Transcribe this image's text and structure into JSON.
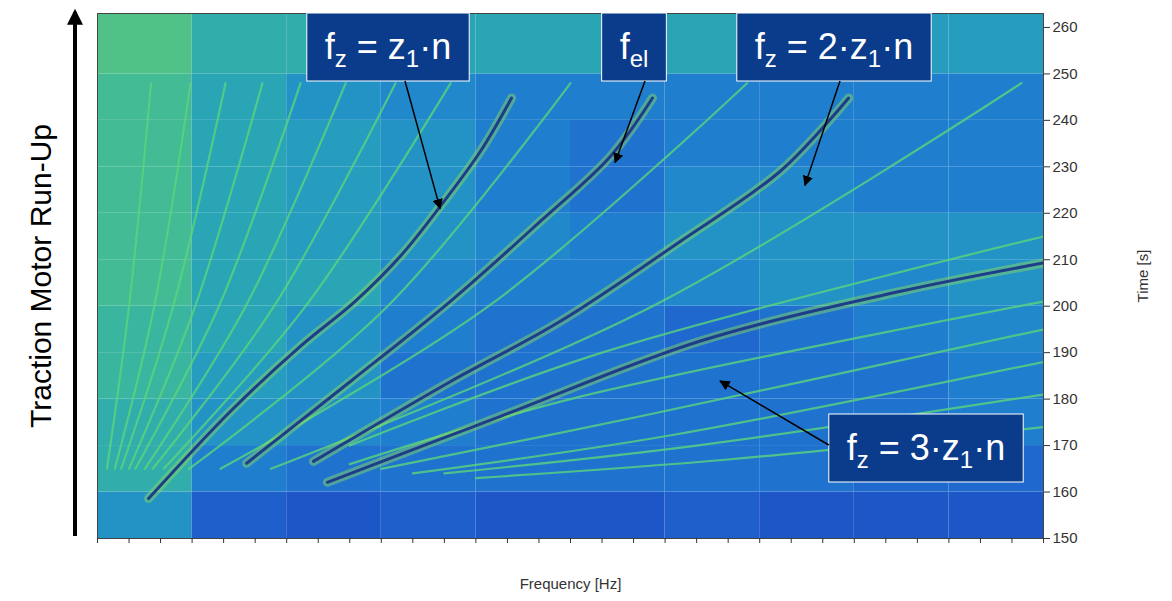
{
  "chart_data": {
    "type": "spectrogram",
    "run_up_label": "Traction Motor Run-Up",
    "xlabel": "Frequency [Hz]",
    "ylabel": "Time [s]",
    "xlim": [
      0,
      30
    ],
    "xticks": [
      0,
      1,
      2,
      3,
      4,
      5,
      6,
      7,
      8,
      9,
      10,
      11,
      12,
      13,
      14,
      15,
      16,
      17,
      18,
      19,
      20,
      21,
      22,
      23,
      24,
      25,
      26,
      27,
      28,
      29,
      30
    ],
    "ylim": [
      150,
      263
    ],
    "yticks": [
      150,
      160,
      170,
      180,
      190,
      200,
      210,
      220,
      230,
      240,
      250,
      260
    ],
    "tick_labels": "y",
    "cells": {
      "x_edges": [
        0,
        3,
        6,
        9,
        12,
        15,
        18,
        21,
        24,
        27,
        30
      ],
      "y_edges": [
        150,
        160,
        170,
        180,
        190,
        200,
        210,
        220,
        230,
        240,
        250,
        263
      ],
      "zlim": [
        0,
        1
      ],
      "values": [
        [
          0.45,
          0.2,
          0.15,
          0.2,
          0.15,
          0.15,
          0.2,
          0.15,
          0.15,
          0.15
        ],
        [
          0.6,
          0.35,
          0.3,
          0.3,
          0.3,
          0.3,
          0.3,
          0.3,
          0.25,
          0.25
        ],
        [
          0.6,
          0.45,
          0.4,
          0.35,
          0.3,
          0.3,
          0.3,
          0.3,
          0.3,
          0.35
        ],
        [
          0.65,
          0.5,
          0.45,
          0.3,
          0.3,
          0.3,
          0.3,
          0.3,
          0.3,
          0.35
        ],
        [
          0.65,
          0.55,
          0.45,
          0.35,
          0.3,
          0.3,
          0.25,
          0.3,
          0.35,
          0.4
        ],
        [
          0.7,
          0.55,
          0.55,
          0.4,
          0.35,
          0.35,
          0.4,
          0.45,
          0.4,
          0.45
        ],
        [
          0.7,
          0.55,
          0.5,
          0.45,
          0.4,
          0.35,
          0.45,
          0.45,
          0.45,
          0.45
        ],
        [
          0.7,
          0.55,
          0.5,
          0.45,
          0.35,
          0.3,
          0.4,
          0.4,
          0.35,
          0.35
        ],
        [
          0.7,
          0.55,
          0.5,
          0.45,
          0.35,
          0.3,
          0.35,
          0.35,
          0.35,
          0.35
        ],
        [
          0.7,
          0.55,
          0.45,
          0.4,
          0.35,
          0.35,
          0.35,
          0.35,
          0.35,
          0.35
        ],
        [
          0.75,
          0.6,
          0.6,
          0.55,
          0.55,
          0.55,
          0.55,
          0.5,
          0.5,
          0.5
        ]
      ]
    },
    "faint_lines": {
      "color": "#5ad47c",
      "lines": [
        {
          "x": [
            0.3,
            1.0,
            1.7
          ],
          "y": [
            165,
            200,
            248
          ]
        },
        {
          "x": [
            0.55,
            1.8,
            2.95
          ],
          "y": [
            165,
            200,
            248
          ]
        },
        {
          "x": [
            0.75,
            2.4,
            4.06
          ],
          "y": [
            165,
            200,
            248
          ]
        },
        {
          "x": [
            1.0,
            3.1,
            5.23
          ],
          "y": [
            165,
            200,
            248
          ]
        },
        {
          "x": [
            1.2,
            3.85,
            6.44
          ],
          "y": [
            165,
            200,
            248
          ]
        },
        {
          "x": [
            1.5,
            4.7,
            7.87
          ],
          "y": [
            165,
            200,
            248
          ]
        },
        {
          "x": [
            1.75,
            5.6,
            9.45
          ],
          "y": [
            165,
            200,
            248
          ]
        },
        {
          "x": [
            2.1,
            6.6,
            11.2
          ],
          "y": [
            165,
            200,
            248
          ]
        },
        {
          "x": [
            2.9,
            9.2,
            15.0
          ],
          "y": [
            165,
            200,
            248
          ]
        },
        {
          "x": [
            3.9,
            12.4,
            20.6
          ],
          "y": [
            165,
            200,
            248
          ]
        },
        {
          "x": [
            5.5,
            17.6,
            29.3
          ],
          "y": [
            165,
            200,
            248
          ]
        },
        {
          "x": [
            8,
            16,
            30
          ],
          "y": [
            170,
            190,
            215
          ]
        },
        {
          "x": [
            8,
            15,
            30
          ],
          "y": [
            166,
            180,
            201
          ]
        },
        {
          "x": [
            9,
            17,
            30
          ],
          "y": [
            165,
            176,
            195
          ]
        },
        {
          "x": [
            10,
            18,
            30
          ],
          "y": [
            164,
            172,
            188
          ]
        },
        {
          "x": [
            11,
            19,
            30
          ],
          "y": [
            164,
            170,
            181
          ]
        },
        {
          "x": [
            12,
            20,
            30
          ],
          "y": [
            163,
            167,
            174
          ]
        }
      ]
    },
    "series": [
      {
        "color": "#1f3c88",
        "x": [
          1.62,
          4.22,
          6.44,
          8.18,
          9.61,
          10.88,
          12.15,
          13.13
        ],
        "y": [
          158.6,
          177.4,
          191.4,
          201.1,
          210.8,
          221.6,
          233.4,
          244.8
        ]
      },
      {
        "color": "#1f3c88",
        "x": [
          4.73,
          8.02,
          11.2,
          14.05,
          16.27,
          17.6
        ],
        "y": [
          166.2,
          183.8,
          201.1,
          218.3,
          232.3,
          244.8
        ]
      },
      {
        "color": "#1f3c88",
        "x": [
          6.85,
          11.2,
          14.69,
          18.49,
          21.66,
          23.82
        ],
        "y": [
          166.6,
          183.8,
          196.8,
          214.0,
          229.1,
          244.8
        ]
      },
      {
        "color": "#1f3c88",
        "x": [
          7.29,
          12.78,
          19.12,
          25.47,
          30.0
        ],
        "y": [
          162.1,
          176.3,
          192.5,
          203.2,
          209.3
        ]
      }
    ],
    "annotations": {
      "color": "#0b3c8c",
      "items": [
        {
          "text": [
            "f",
            "z",
            " = z",
            "1",
            "·n"
          ],
          "x": 10.88,
          "y": 220.9
        },
        {
          "text": [
            "f",
            "el"
          ],
          "x": 16.43,
          "y": 230.8
        },
        {
          "text": [
            "f",
            "z",
            " = 2·z",
            "1",
            "·n"
          ],
          "x": 22.45,
          "y": 225.9
        },
        {
          "text": [
            "f",
            "z",
            " = 3·z",
            "1",
            "·n"
          ],
          "x": 19.76,
          "y": 183.8
        }
      ]
    }
  }
}
